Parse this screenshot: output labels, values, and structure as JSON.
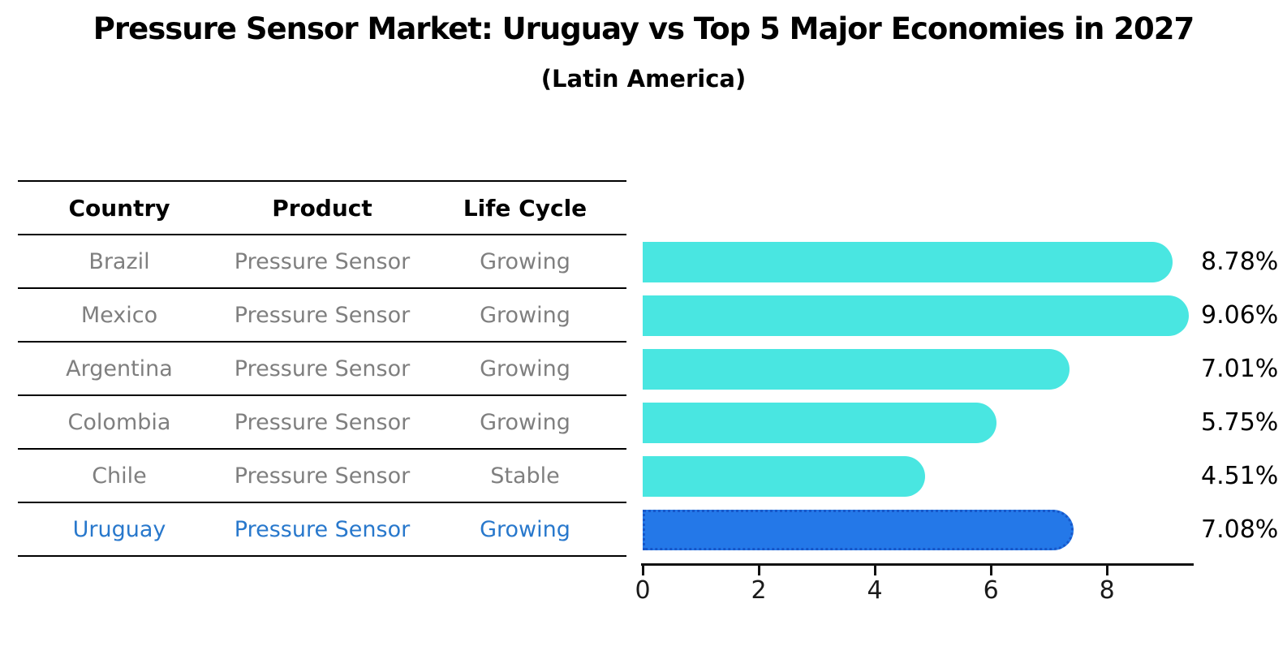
{
  "header": {
    "title": "Pressure Sensor Market: Uruguay vs Top 5 Major Economies in 2027",
    "subtitle": "(Latin America)"
  },
  "table": {
    "columns": [
      "Country",
      "Product",
      "Life Cycle"
    ],
    "rows": [
      {
        "country": "Brazil",
        "product": "Pressure Sensor",
        "life_cycle": "Growing",
        "highlight": false
      },
      {
        "country": "Mexico",
        "product": "Pressure Sensor",
        "life_cycle": "Growing",
        "highlight": false
      },
      {
        "country": "Argentina",
        "product": "Pressure Sensor",
        "life_cycle": "Growing",
        "highlight": false
      },
      {
        "country": "Colombia",
        "product": "Pressure Sensor",
        "life_cycle": "Growing",
        "highlight": false
      },
      {
        "country": "Chile",
        "product": "Pressure Sensor",
        "life_cycle": "Stable",
        "highlight": false
      },
      {
        "country": "Uruguay",
        "product": "Pressure Sensor",
        "life_cycle": "Growing",
        "highlight": true
      }
    ]
  },
  "chart_data": {
    "type": "bar",
    "orientation": "horizontal",
    "title": "Pressure Sensor Market: Uruguay vs Top 5 Major Economies in 2027",
    "subtitle": "(Latin America)",
    "categories": [
      "Brazil",
      "Mexico",
      "Argentina",
      "Colombia",
      "Chile",
      "Uruguay"
    ],
    "values": [
      8.78,
      9.06,
      7.01,
      5.75,
      4.51,
      7.08
    ],
    "value_labels": [
      "8.78%",
      "9.06%",
      "7.01%",
      "5.75%",
      "4.51%",
      "7.08%"
    ],
    "highlight_index": 5,
    "x_ticks": [
      0,
      2,
      4,
      6,
      8
    ],
    "xlim": [
      0,
      9.48
    ],
    "grid": false,
    "legend": false,
    "value_label_position": "right",
    "xlabel": "",
    "ylabel": ""
  },
  "colors": {
    "bar": "#49E6E1",
    "highlight_bar": "#2478E8",
    "highlight_bar_border": "#1757C9",
    "highlight_text": "#2878CC",
    "table_text": "#7f7f7f",
    "heading_text": "#000000"
  }
}
